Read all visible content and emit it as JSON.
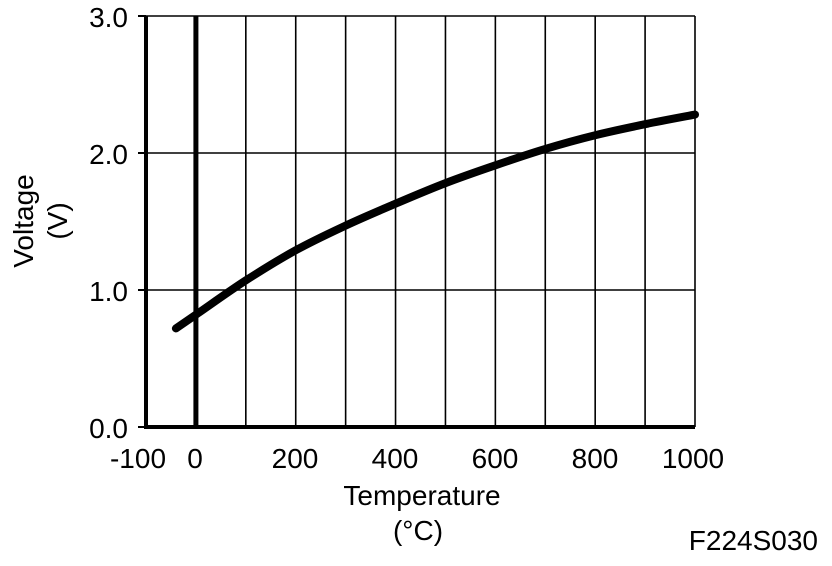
{
  "chart_data": {
    "type": "line",
    "xlabel": "Temperature",
    "xunit": "(°C)",
    "ylabel": "Voltage",
    "yunit": "(V)",
    "xlim": [
      -100,
      1000
    ],
    "ylim": [
      0.0,
      3.0
    ],
    "x_ticks": [
      -100,
      0,
      200,
      400,
      600,
      800,
      1000
    ],
    "x_tick_labels": [
      "-100",
      "0",
      "200",
      "400",
      "600",
      "800",
      "1000"
    ],
    "x_gridlines": [
      -100,
      0,
      100,
      200,
      300,
      400,
      500,
      600,
      700,
      800,
      900,
      1000
    ],
    "y_ticks": [
      0.0,
      1.0,
      2.0,
      3.0
    ],
    "y_tick_labels": [
      "0.0",
      "1.0",
      "2.0",
      "3.0"
    ],
    "grid": true,
    "series": [
      {
        "x": [
          -40,
          0,
          100,
          200,
          300,
          400,
          500,
          600,
          700,
          800,
          900,
          1000
        ],
        "y": [
          0.72,
          0.82,
          1.07,
          1.29,
          1.47,
          1.63,
          1.78,
          1.91,
          2.03,
          2.13,
          2.21,
          2.28
        ]
      }
    ]
  },
  "figure_code": "F224S030"
}
